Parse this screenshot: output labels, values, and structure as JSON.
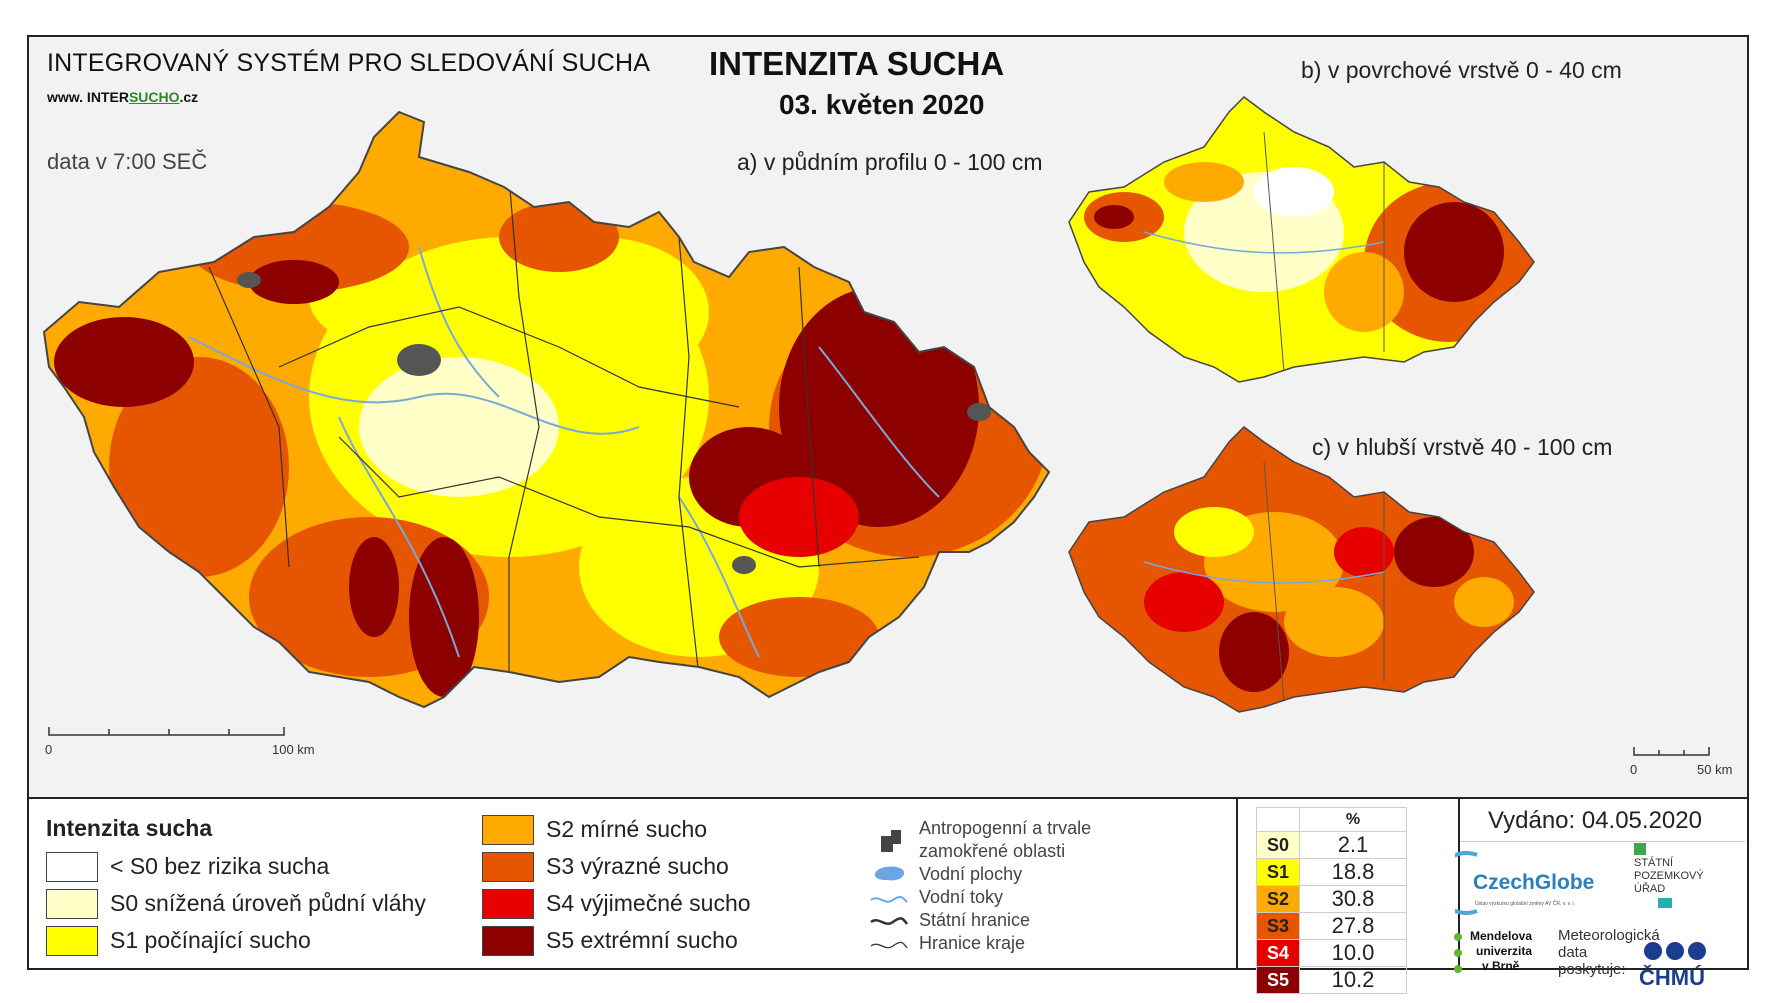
{
  "header": {
    "system_title": "INTEGROVANÝ SYSTÉM PRO SLEDOVÁNÍ SUCHA",
    "website_prefix": "www. INTER",
    "website_accent": "SUCHO",
    "website_suffix": ".cz",
    "data_note": "data v 7:00 SEČ",
    "main_title": "INTENZITA SUCHA",
    "date": "03. květen 2020"
  },
  "maps": {
    "a_title": "a) v půdním profilu 0 - 100 cm",
    "b_title": "b) v povrchové vrstvě 0 - 40 cm",
    "c_title": "c) v hlubší vrstvě 40 - 100 cm",
    "scale_main": {
      "zero": "0",
      "end": "100 km"
    },
    "scale_small": {
      "zero": "0",
      "end": "50 km"
    }
  },
  "legend": {
    "title": "Intenzita sucha",
    "classes": [
      {
        "label": "< S0 bez rizika sucha",
        "color": "#ffffff"
      },
      {
        "label": "S0 snížená úroveň půdní vláhy",
        "color": "#ffffc8"
      },
      {
        "label": "S1 počínající sucho",
        "color": "#ffff00"
      },
      {
        "label": "S2 mírné sucho",
        "color": "#ffaa00"
      },
      {
        "label": "S3 výrazné sucho",
        "color": "#e65500"
      },
      {
        "label": "S4 výjimečné sucho",
        "color": "#e60000"
      },
      {
        "label": "S5 extrémní sucho",
        "color": "#8c0000"
      }
    ],
    "symbols": {
      "anthropogenic": [
        "Antropogenní a trvale",
        "zamokřené oblasti"
      ],
      "water_bodies": "Vodní plochy",
      "rivers": "Vodní toky",
      "state_border": "Státní hranice",
      "region_border": "Hranice kraje"
    }
  },
  "stats": {
    "header": "%",
    "rows": [
      {
        "code": "S0",
        "value": "2.1",
        "color": "#ffffc8"
      },
      {
        "code": "S1",
        "value": "18.8",
        "color": "#ffff00"
      },
      {
        "code": "S2",
        "value": "30.8",
        "color": "#ffaa00"
      },
      {
        "code": "S3",
        "value": "27.8",
        "color": "#e65500"
      },
      {
        "code": "S4",
        "value": "10.0",
        "color": "#e60000"
      },
      {
        "code": "S5",
        "value": "10.2",
        "color": "#8c0000"
      }
    ]
  },
  "footer": {
    "issued": "Vydáno: 04.05.2020",
    "czechglobe": "CzechGlobe",
    "czechglobe_sub": "Ústav výzkumu globální změny AV ČR, v. v. i.",
    "spu": [
      "STÁTNÍ",
      "POZEMKOVÝ",
      "ÚŘAD"
    ],
    "mendel": [
      "Mendelova",
      "univerzita",
      "v Brně"
    ],
    "meteo": [
      "Meteorologická",
      "data",
      "poskytuje:"
    ],
    "chmu": "ČHMÚ"
  }
}
